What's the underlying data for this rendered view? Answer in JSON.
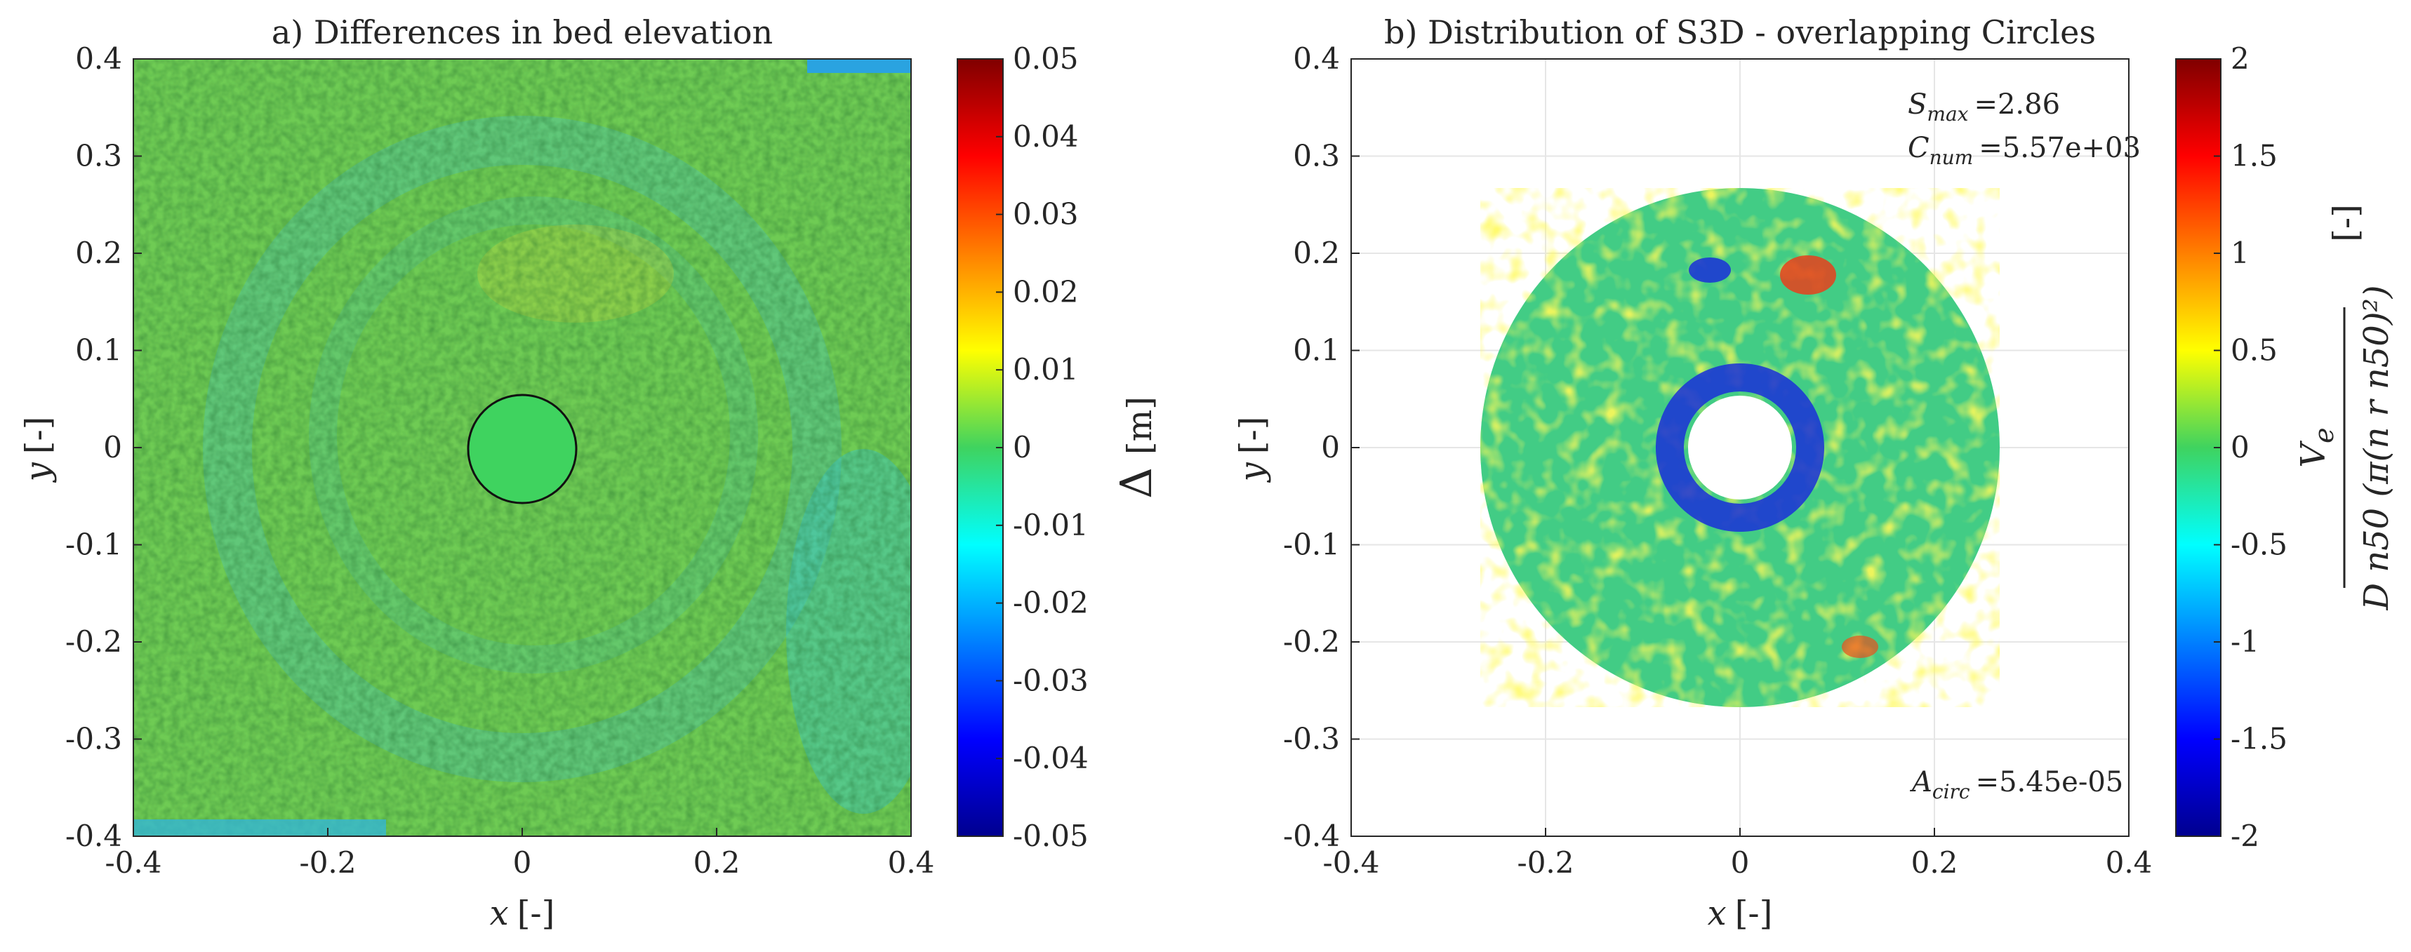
{
  "chart_data": [
    {
      "type": "heatmap",
      "title": "a) Differences in bed elevation",
      "xlabel_var": "x",
      "xlabel_unit": "[-]",
      "ylabel_var": "y",
      "ylabel_unit": "[-]",
      "xlim": [
        -0.4,
        0.4
      ],
      "ylim": [
        -0.4,
        0.4
      ],
      "x_ticks": [
        "-0.4",
        "-0.2",
        "0",
        "0.2",
        "0.4"
      ],
      "y_ticks": [
        "0.4",
        "0.3",
        "0.2",
        "0.1",
        "0",
        "-0.1",
        "-0.2",
        "-0.3",
        "-0.4"
      ],
      "pile_diameter": 0.11,
      "colorbar": {
        "label_symbol": "Δ",
        "label_unit": "[m]",
        "range": [
          -0.05,
          0.05
        ],
        "ticks": [
          "0.05",
          "0.04",
          "0.03",
          "0.02",
          "0.01",
          "0",
          "-0.01",
          "-0.02",
          "-0.03",
          "-0.04",
          "-0.05"
        ]
      }
    },
    {
      "type": "heatmap",
      "title": "b) Distribution of S3D - overlapping Circles",
      "xlabel_var": "x",
      "xlabel_unit": "[-]",
      "ylabel_var": "y",
      "ylabel_unit": "[-]",
      "xlim": [
        -0.4,
        0.4
      ],
      "ylim": [
        -0.4,
        0.4
      ],
      "x_ticks": [
        "-0.4",
        "-0.2",
        "0",
        "0.2",
        "0.4"
      ],
      "y_ticks": [
        "0.4",
        "0.3",
        "0.2",
        "0.1",
        "0",
        "-0.1",
        "-0.2",
        "-0.3",
        "-0.4"
      ],
      "outer_radius": 0.267,
      "inner_radius": 0.055,
      "annotations": {
        "s_max_symbol": "S",
        "s_max_sub": "max",
        "s_max_value": "=2.86",
        "c_num_symbol": "C",
        "c_num_sub": "num",
        "c_num_value": "=5.57e+03",
        "a_circ_symbol": "A",
        "a_circ_sub": "circ",
        "a_circ_value": "=5.45e-05"
      },
      "colorbar": {
        "range": [
          -2,
          2
        ],
        "ticks": [
          "2",
          "1.5",
          "1",
          "0.5",
          "0",
          "-0.5",
          "-1",
          "-1.5",
          "-2"
        ],
        "label_numerator": "V",
        "label_numerator_sub": "e",
        "label_denominator": "D n50 (π(n r n50)²)",
        "label_unit": "[-]"
      }
    }
  ]
}
